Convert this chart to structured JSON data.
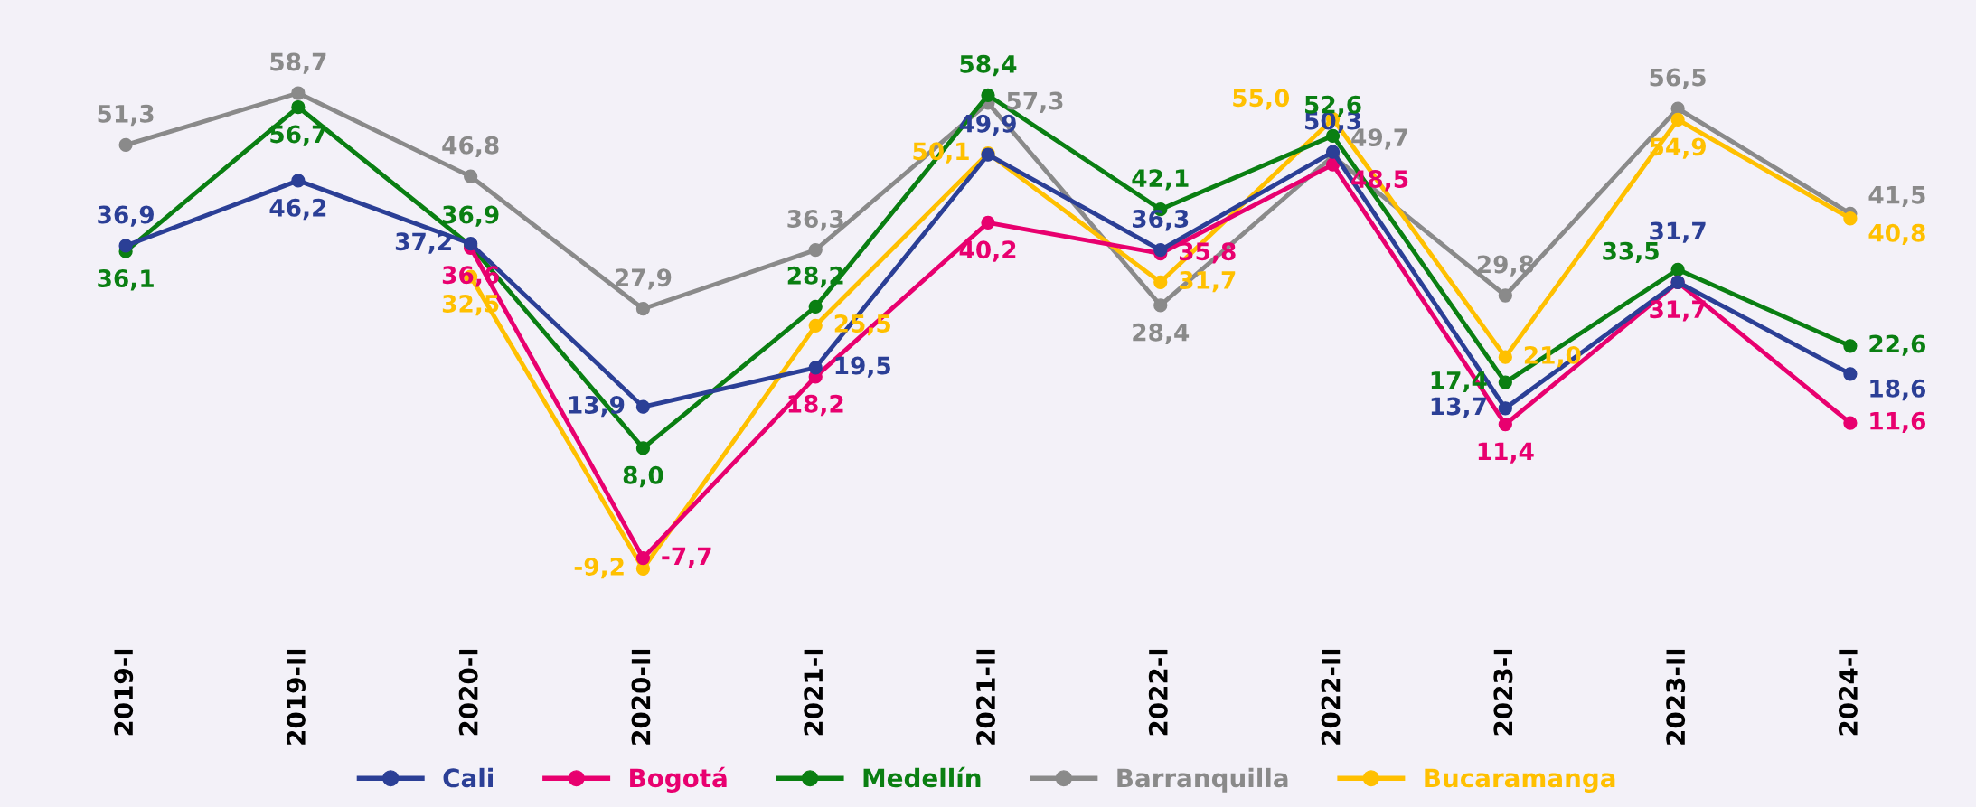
{
  "chart_data": {
    "type": "line",
    "categories": [
      "2019-I",
      "2019-II",
      "2020-I",
      "2020-II",
      "2021-I",
      "2021-II",
      "2022-I",
      "2022-II",
      "2023-I",
      "2023-II",
      "2024-I"
    ],
    "series": [
      {
        "name": "Cali",
        "color": "#2b3f96",
        "values": [
          36.9,
          46.2,
          37.2,
          13.9,
          19.5,
          49.9,
          36.3,
          50.3,
          13.7,
          31.7,
          18.6
        ],
        "value_labels": [
          "36,9",
          "46,2",
          "37,2",
          "13,9",
          "19,5",
          "49,9",
          "36,3",
          "50,3",
          "13,7",
          "31,7",
          "18,6"
        ]
      },
      {
        "name": "Bogotá",
        "color": "#e8006f",
        "values": [
          null,
          null,
          36.6,
          -7.7,
          18.2,
          40.2,
          35.8,
          48.5,
          11.4,
          31.7,
          11.6
        ],
        "value_labels": [
          null,
          null,
          "36,6",
          "-7,7",
          "18,2",
          "40,2",
          "35,8",
          "48,5",
          "11,4",
          "31,7",
          "11,6"
        ]
      },
      {
        "name": "Medellín",
        "color": "#0a7f12",
        "values": [
          36.1,
          56.7,
          36.9,
          8.0,
          28.2,
          58.4,
          42.1,
          52.6,
          17.4,
          33.5,
          22.6
        ],
        "value_labels": [
          "36,1",
          "56,7",
          "36,9",
          "8,0",
          "28,2",
          "58,4",
          "42,1",
          "52,6",
          "17,4",
          "33,5",
          "22,6"
        ]
      },
      {
        "name": "Barranquilla",
        "color": "#8a8a8a",
        "values": [
          51.3,
          58.7,
          46.8,
          27.9,
          36.3,
          57.3,
          28.4,
          49.7,
          29.8,
          56.5,
          41.5
        ],
        "value_labels": [
          "51,3",
          "58,7",
          "46,8",
          "27,9",
          "36,3",
          "57,3",
          "28,4",
          "49,7",
          "29,8",
          "56,5",
          "41,5"
        ]
      },
      {
        "name": "Bucaramanga",
        "color": "#ffc000",
        "values": [
          null,
          null,
          32.5,
          -9.2,
          25.5,
          50.1,
          31.7,
          55.0,
          21.0,
          54.9,
          40.8
        ],
        "value_labels": [
          null,
          null,
          "32,5",
          "-9,2",
          "25,5",
          "50,1",
          "31,7",
          "55,0",
          "21,0",
          "54,9",
          "40,8"
        ]
      }
    ],
    "legend": "bottom",
    "marker": "circle",
    "line_style": "solid",
    "grid": false,
    "tick_labels": "x"
  }
}
